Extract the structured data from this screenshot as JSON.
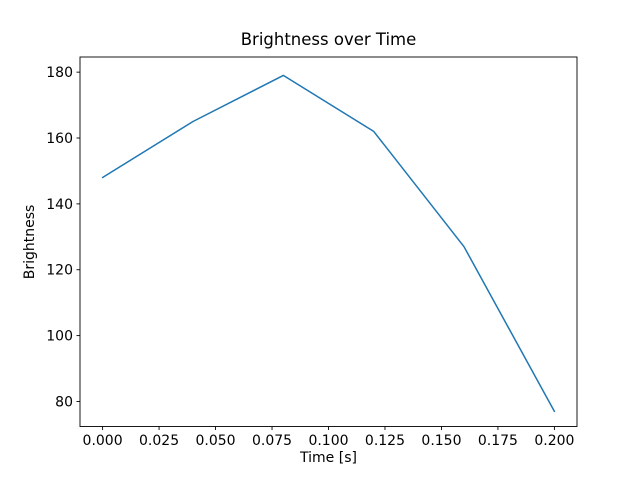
{
  "chart_data": {
    "type": "line",
    "title": "Brightness over Time",
    "xlabel": "Time [s]",
    "ylabel": "Brightness",
    "x": [
      0.0,
      0.04,
      0.08,
      0.12,
      0.16,
      0.2
    ],
    "y": [
      148,
      165,
      179,
      162,
      127,
      77
    ],
    "xlim": [
      -0.01,
      0.21
    ],
    "ylim": [
      72.4,
      184.6
    ],
    "xticks": {
      "values": [
        0.0,
        0.025,
        0.05,
        0.075,
        0.1,
        0.125,
        0.15,
        0.175,
        0.2
      ],
      "labels": [
        "0.000",
        "0.025",
        "0.050",
        "0.075",
        "0.100",
        "0.125",
        "0.150",
        "0.175",
        "0.200"
      ]
    },
    "yticks": {
      "values": [
        80,
        100,
        120,
        140,
        160,
        180
      ],
      "labels": [
        "80",
        "100",
        "120",
        "140",
        "160",
        "180"
      ]
    },
    "line_color": "#1f77b4",
    "line_width": 1.5,
    "spine_color": "#000000",
    "grid": false,
    "legend": false,
    "background": "#ffffff"
  }
}
